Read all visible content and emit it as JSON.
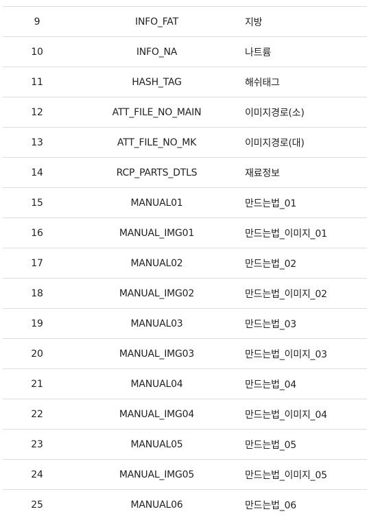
{
  "rows": [
    {
      "no": "9",
      "column": "INFO_FAT",
      "desc": "지방"
    },
    {
      "no": "10",
      "column": "INFO_NA",
      "desc": "나트륨"
    },
    {
      "no": "11",
      "column": "HASH_TAG",
      "desc": "해쉬태그"
    },
    {
      "no": "12",
      "column": "ATT_FILE_NO_MAIN",
      "desc": "이미지경로(소)"
    },
    {
      "no": "13",
      "column": "ATT_FILE_NO_MK",
      "desc": "이미지경로(대)"
    },
    {
      "no": "14",
      "column": "RCP_PARTS_DTLS",
      "desc": "재료정보"
    },
    {
      "no": "15",
      "column": "MANUAL01",
      "desc": "만드는법_01"
    },
    {
      "no": "16",
      "column": "MANUAL_IMG01",
      "desc": "만드는법_이미지_01"
    },
    {
      "no": "17",
      "column": "MANUAL02",
      "desc": "만드는법_02"
    },
    {
      "no": "18",
      "column": "MANUAL_IMG02",
      "desc": "만드는법_이미지_02"
    },
    {
      "no": "19",
      "column": "MANUAL03",
      "desc": "만드는법_03"
    },
    {
      "no": "20",
      "column": "MANUAL_IMG03",
      "desc": "만드는법_이미지_03"
    },
    {
      "no": "21",
      "column": "MANUAL04",
      "desc": "만드는법_04"
    },
    {
      "no": "22",
      "column": "MANUAL_IMG04",
      "desc": "만드는법_이미지_04"
    },
    {
      "no": "23",
      "column": "MANUAL05",
      "desc": "만드는법_05"
    },
    {
      "no": "24",
      "column": "MANUAL_IMG05",
      "desc": "만드는법_이미지_05"
    },
    {
      "no": "25",
      "column": "MANUAL06",
      "desc": "만드는법_06"
    }
  ]
}
